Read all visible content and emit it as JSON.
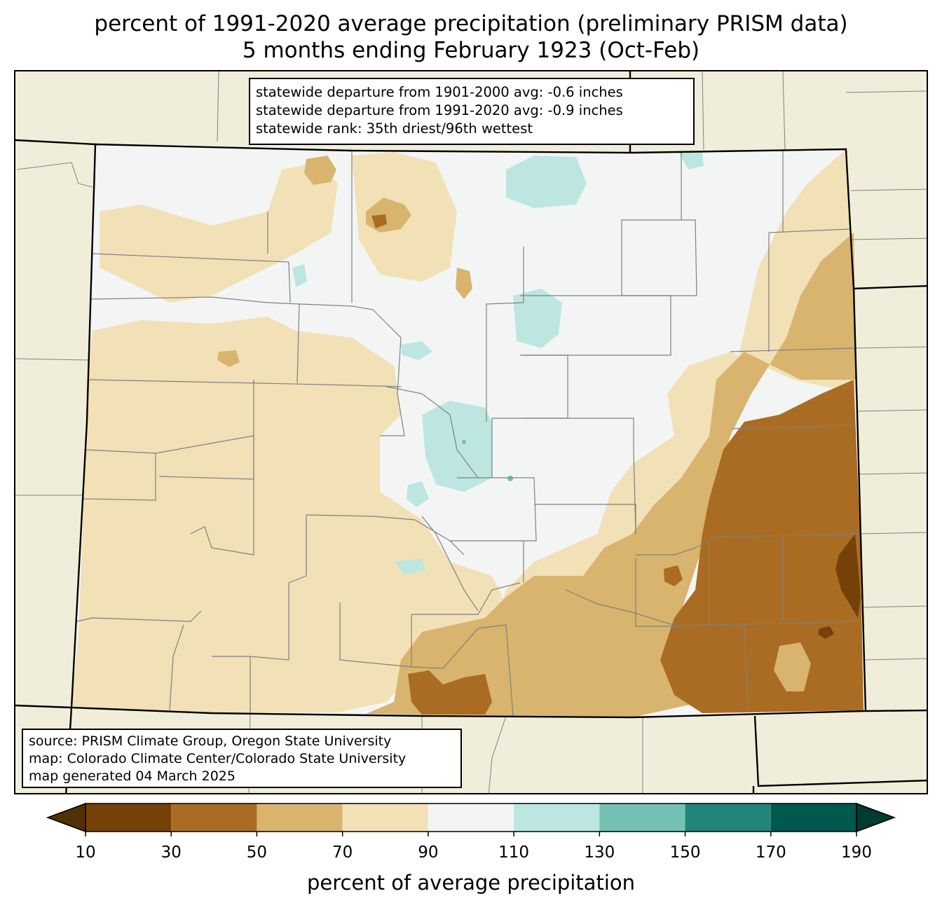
{
  "title": {
    "line1": "percent of 1991-2020 average precipitation (preliminary PRISM data)",
    "line2": "5 months ending February 1923 (Oct-Feb)"
  },
  "stats_box": {
    "line1": "statewide departure from 1901-2000 avg: -0.6 inches",
    "line2": "statewide departure from 1991-2020 avg: -0.9 inches",
    "line3": "statewide rank: 35th driest/96th wettest"
  },
  "source_box": {
    "line1": "source: PRISM Climate Group, Oregon State University",
    "line2": "map: Colorado Climate Center/Colorado State University",
    "line3": "map generated 04 March 2025"
  },
  "colorbar": {
    "label": "percent of average precipitation",
    "ticks": [
      "10",
      "30",
      "50",
      "70",
      "90",
      "110",
      "130",
      "150",
      "170",
      "190"
    ],
    "bins": [
      {
        "range": "<10",
        "color": "#543005"
      },
      {
        "range": "10-30",
        "color": "#744109"
      },
      {
        "range": "30-50",
        "color": "#aa6c22"
      },
      {
        "range": "50-70",
        "color": "#d8b46e"
      },
      {
        "range": "70-90",
        "color": "#f2e1b7"
      },
      {
        "range": "90-110",
        "color": "#f3f5f5"
      },
      {
        "range": "110-130",
        "color": "#bde6e1"
      },
      {
        "range": "130-150",
        "color": "#72c1b4"
      },
      {
        "range": "150-170",
        "color": "#218579"
      },
      {
        "range": "170-190",
        "color": "#01584e"
      },
      {
        "range": ">190",
        "color": "#003c30"
      }
    ]
  },
  "colors": {
    "background_land": "#f0eedb",
    "county_lines": "#808080",
    "state_lines": "#000000"
  }
}
